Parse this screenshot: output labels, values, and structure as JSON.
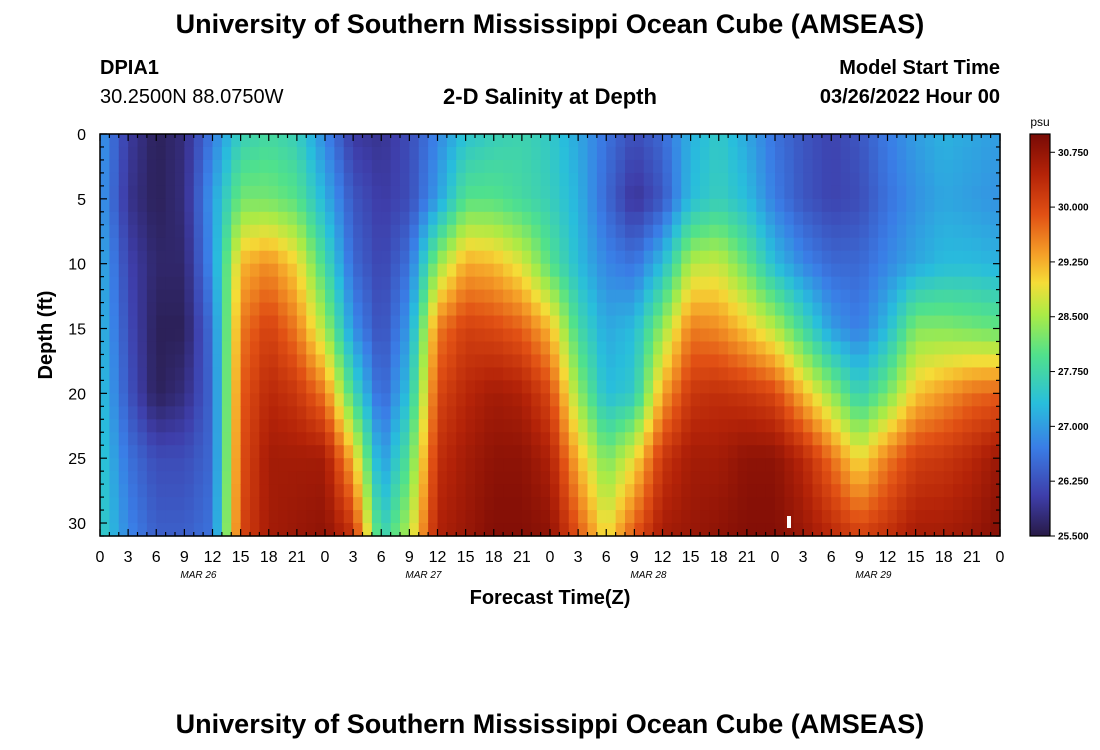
{
  "header": {
    "title": "University of Southern Mississippi Ocean Cube (AMSEAS)",
    "station_id": "DPIA1",
    "coordinates": "30.2500N  88.0750W",
    "plot_title": "2-D Salinity at Depth",
    "model_start_label": "Model Start Time",
    "model_start_value": "03/26/2022 Hour 00"
  },
  "footer": {
    "title": "University of Southern Mississippi Ocean Cube (AMSEAS)"
  },
  "chart_data": {
    "type": "heatmap",
    "title": "2-D Salinity at Depth",
    "xlabel": "Forecast Time(Z)",
    "ylabel": "Depth (ft)",
    "units": "psu",
    "x_tick_labels": [
      "0",
      "3",
      "6",
      "9",
      "12",
      "15",
      "18",
      "21",
      "0",
      "3",
      "6",
      "9",
      "12",
      "15",
      "18",
      "21",
      "0",
      "3",
      "6",
      "9",
      "12",
      "15",
      "18",
      "21",
      "0",
      "3",
      "6",
      "9",
      "12",
      "15",
      "18",
      "21",
      "0"
    ],
    "date_labels": [
      {
        "label": "MAR 26",
        "hour": 10.5
      },
      {
        "label": "MAR 27",
        "hour": 34.5
      },
      {
        "label": "MAR 28",
        "hour": 58.5
      },
      {
        "label": "MAR 29",
        "hour": 82.5
      }
    ],
    "x_range_hours": [
      0,
      96
    ],
    "y_ticks": [
      0,
      5,
      10,
      15,
      20,
      25,
      30
    ],
    "y_range_ft": [
      0,
      31
    ],
    "colorbar": {
      "min": 25.5,
      "max": 31.0,
      "ticks": [
        "30.750",
        "30.000",
        "29.250",
        "28.500",
        "27.750",
        "27.000",
        "26.250",
        "25.500"
      ],
      "tick_values": [
        30.75,
        30.0,
        29.25,
        28.5,
        27.75,
        27.0,
        26.25,
        25.5
      ]
    },
    "columns_hours": [
      0,
      3,
      6,
      9,
      12,
      15,
      18,
      21,
      24,
      27,
      30,
      33,
      36,
      39,
      42,
      45,
      48,
      51,
      54,
      57,
      60,
      63,
      66,
      69,
      72,
      75,
      78,
      81,
      84,
      87,
      90,
      93,
      96
    ],
    "rows_depth_ft": [
      0,
      5,
      10,
      15,
      20,
      25,
      31
    ],
    "salinity": [
      [
        27.0,
        26.0,
        25.6,
        25.8,
        26.7,
        27.6,
        27.8,
        27.6,
        26.8,
        26.0,
        25.9,
        26.2,
        26.8,
        27.4,
        27.6,
        27.7,
        27.5,
        27.1,
        26.6,
        26.2,
        26.5,
        27.2,
        27.5,
        27.1,
        26.6,
        26.3,
        26.1,
        26.3,
        26.7,
        27.0,
        27.2,
        27.1,
        27.0
      ],
      [
        27.0,
        25.9,
        25.6,
        25.8,
        27.0,
        28.2,
        28.2,
        28.0,
        27.2,
        26.3,
        26.0,
        26.2,
        27.0,
        28.0,
        28.0,
        27.8,
        27.6,
        27.2,
        26.5,
        25.9,
        26.3,
        27.3,
        27.6,
        27.3,
        26.7,
        26.3,
        26.1,
        26.2,
        26.6,
        26.9,
        27.1,
        27.0,
        26.9
      ],
      [
        27.2,
        26.1,
        25.7,
        25.7,
        26.9,
        29.2,
        29.5,
        29.0,
        27.8,
        26.5,
        26.1,
        26.6,
        28.4,
        29.3,
        29.2,
        28.8,
        28.0,
        27.3,
        26.8,
        26.6,
        27.3,
        28.6,
        28.7,
        28.1,
        27.3,
        26.8,
        26.5,
        26.5,
        26.8,
        27.1,
        27.3,
        27.3,
        27.2
      ],
      [
        27.3,
        26.2,
        25.6,
        25.6,
        26.6,
        29.6,
        30.1,
        29.6,
        28.5,
        26.9,
        26.2,
        27.0,
        29.6,
        30.1,
        30.0,
        29.8,
        29.2,
        27.8,
        27.1,
        27.3,
        28.4,
        29.6,
        29.5,
        29.1,
        28.6,
        27.8,
        27.0,
        26.7,
        27.3,
        28.3,
        28.3,
        28.2,
        28.1
      ],
      [
        27.4,
        26.3,
        25.6,
        25.8,
        26.5,
        29.8,
        30.4,
        30.2,
        29.6,
        27.8,
        26.4,
        27.4,
        30.0,
        30.4,
        30.6,
        30.5,
        30.0,
        28.4,
        27.3,
        27.5,
        29.3,
        30.2,
        30.3,
        30.2,
        30.0,
        29.2,
        28.4,
        27.6,
        28.2,
        29.1,
        29.4,
        29.7,
        29.8
      ],
      [
        27.5,
        26.6,
        26.2,
        26.2,
        26.5,
        29.9,
        30.6,
        30.6,
        30.6,
        29.2,
        26.9,
        28.0,
        30.3,
        30.6,
        30.8,
        30.8,
        30.5,
        29.2,
        28.2,
        28.9,
        30.2,
        30.6,
        30.6,
        30.8,
        30.8,
        30.4,
        29.7,
        28.9,
        29.6,
        30.1,
        30.2,
        30.4,
        30.7
      ],
      [
        27.6,
        26.8,
        26.4,
        26.4,
        26.6,
        30.0,
        30.6,
        30.7,
        30.8,
        30.3,
        27.6,
        28.6,
        30.5,
        30.7,
        30.9,
        30.9,
        30.8,
        29.9,
        28.9,
        29.9,
        30.6,
        30.7,
        30.8,
        30.9,
        30.9,
        30.7,
        30.4,
        30.1,
        30.3,
        30.6,
        30.6,
        30.7,
        30.9
      ]
    ]
  }
}
